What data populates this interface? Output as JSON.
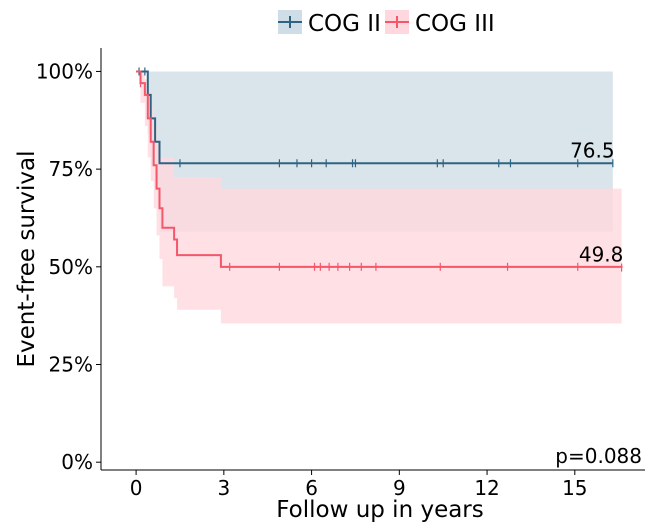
{
  "chart_data": {
    "type": "line",
    "step": true,
    "xlabel": "Follow up in years",
    "ylabel": "Event-free survival",
    "xlim": [
      -1.2,
      17.4
    ],
    "ylim": [
      -2,
      106
    ],
    "x_ticks": [
      0,
      3,
      6,
      9,
      12,
      15
    ],
    "y_ticks": [
      0,
      25,
      50,
      75,
      100
    ],
    "y_tick_labels": [
      "0%",
      "25%",
      "50%",
      "75%",
      "100%"
    ],
    "legend": {
      "position": "top"
    },
    "pvalue": "p=0.088",
    "series": [
      {
        "name": "COG II",
        "color": "#2e6482",
        "band_color": "#cfdde6",
        "curve": [
          [
            0,
            100
          ],
          [
            0.4,
            94
          ],
          [
            0.5,
            88
          ],
          [
            0.65,
            82
          ],
          [
            0.8,
            76.5
          ],
          [
            16.3,
            76.5
          ]
        ],
        "ci": [
          [
            0,
            100,
            100
          ],
          [
            0.4,
            100,
            84
          ],
          [
            0.5,
            100,
            76
          ],
          [
            0.65,
            100,
            70
          ],
          [
            0.8,
            100,
            59
          ],
          [
            16.3,
            100,
            59
          ]
        ],
        "censor_x": [
          0.1,
          0.3,
          1.5,
          4.9,
          5.5,
          6,
          6.5,
          7.4,
          7.5,
          10.3,
          10.5,
          12.4,
          12.8,
          15.1,
          16.3
        ],
        "end_label": "76.5",
        "end_label_x": 15.6
      },
      {
        "name": "COG III",
        "color": "#f4566a",
        "band_color": "#ffd8df",
        "curve": [
          [
            0,
            100
          ],
          [
            0.15,
            97
          ],
          [
            0.3,
            94
          ],
          [
            0.4,
            88
          ],
          [
            0.5,
            82
          ],
          [
            0.6,
            76
          ],
          [
            0.7,
            70
          ],
          [
            0.8,
            65
          ],
          [
            0.9,
            60
          ],
          [
            1.3,
            57
          ],
          [
            1.4,
            53
          ],
          [
            2.9,
            50
          ],
          [
            16.6,
            49.8
          ]
        ],
        "ci": [
          [
            0,
            100,
            100
          ],
          [
            0.15,
            100,
            92
          ],
          [
            0.3,
            98,
            86
          ],
          [
            0.4,
            95,
            78
          ],
          [
            0.5,
            91,
            72
          ],
          [
            0.6,
            86,
            65
          ],
          [
            0.7,
            82,
            58
          ],
          [
            0.8,
            78,
            52
          ],
          [
            0.9,
            78,
            45
          ],
          [
            1.3,
            73,
            42
          ],
          [
            1.4,
            73,
            39
          ],
          [
            2.9,
            70,
            35.5
          ],
          [
            16.6,
            70,
            35.5
          ]
        ],
        "censor_x": [
          0.15,
          3.2,
          4.9,
          6.1,
          6.3,
          6.6,
          6.9,
          7.3,
          7.7,
          8.2,
          10.4,
          12.7,
          15.1,
          16.6
        ],
        "end_label": "49.8",
        "end_label_x": 15.9
      }
    ]
  }
}
